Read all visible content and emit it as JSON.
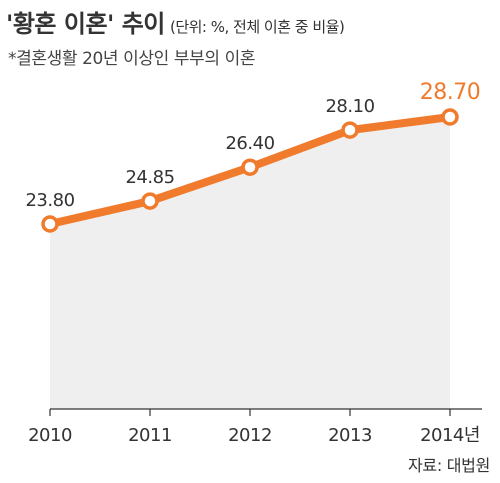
{
  "header": {
    "title": "'황혼 이혼' 추이",
    "unit_note": "(단위: %, 전체 이혼 중 비율)",
    "subtitle": "*결혼생활 20년 이상인 부부의 이혼"
  },
  "source": "자료: 대법원",
  "colors": {
    "line": "#f07b2c",
    "area": "#efefef",
    "marker_fill": "#ffffff",
    "axis": "#333333",
    "highlight_label": "#f07b2c"
  },
  "chart_data": {
    "type": "area",
    "title": "'황혼 이혼' 추이",
    "x": [
      "2010",
      "2011",
      "2012",
      "2013",
      "2014년"
    ],
    "series": [
      {
        "values": [
          23.8,
          24.85,
          26.4,
          28.1,
          28.7
        ],
        "labels": [
          "23.80",
          "24.85",
          "26.40",
          "28.10",
          "28.70"
        ]
      }
    ],
    "xlabel": "",
    "ylabel": "",
    "grid": false,
    "legend": "none",
    "markers": "hollow-circle"
  }
}
